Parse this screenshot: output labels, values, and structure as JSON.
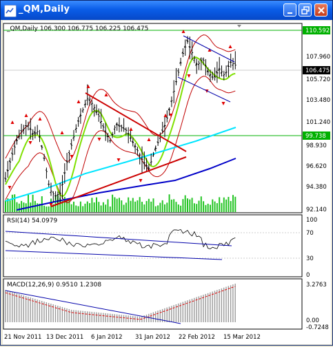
{
  "window": {
    "title": "_QM,Daily",
    "buttons": [
      "minimize-icon",
      "restore-icon",
      "close-icon"
    ]
  },
  "main_chart": {
    "header": "_QM,Daily  106.300 106.775 106.225 106.475",
    "price_labels": [
      "107.960",
      "106.475",
      "105.720",
      "103.480",
      "101.240",
      "98.930",
      "96.620",
      "94.380",
      "92.140"
    ],
    "highlight_levels": [
      "110.592",
      "99.738"
    ],
    "current_price": "106.475"
  },
  "rsi": {
    "header": "RSI(14) 54.0979",
    "levels": [
      "100",
      "70",
      "30",
      "0"
    ]
  },
  "macd": {
    "header": "MACD(12,26,9) 0.9510 1.2308",
    "levels": [
      "3.2763",
      "0.00",
      "-0.7248"
    ]
  },
  "time_axis": [
    "21 Nov 2011",
    "13 Dec 2011",
    "6 Jan 2012",
    "31 Jan 2012",
    "22 Feb 2012",
    "15 Mar 2012"
  ],
  "colors": {
    "bars": "#000000",
    "ma_fast": "#7FE000",
    "ma_mid": "#00E5FF",
    "ma_slow": "#0000C8",
    "bands": "#C00000",
    "trend_red": "#CC0000",
    "volume": "#22C422",
    "levels": "#00B000"
  }
}
